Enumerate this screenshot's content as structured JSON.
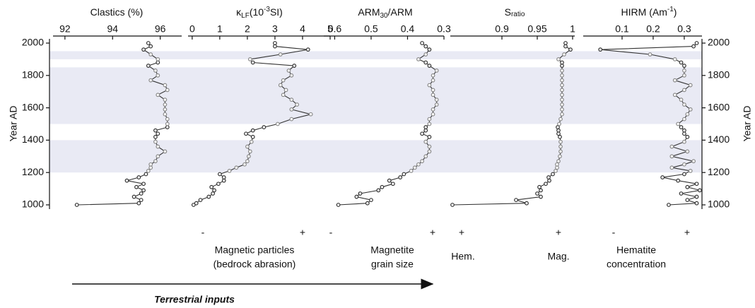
{
  "chart_data": {
    "type": "line",
    "ylabel": "Year AD",
    "ylim": [
      1000,
      2000
    ],
    "yticks": [
      1000,
      1200,
      1400,
      1600,
      1800,
      2000
    ],
    "bands": [
      [
        1200,
        1400
      ],
      [
        1500,
        1850
      ],
      [
        1900,
        1950
      ]
    ],
    "band_color": "#e9eaf4",
    "line_color": "#333333",
    "band_point_color": "#8a8a8a",
    "y": [
      1000,
      1010,
      1030,
      1050,
      1070,
      1090,
      1110,
      1130,
      1150,
      1170,
      1190,
      1210,
      1230,
      1250,
      1270,
      1300,
      1330,
      1360,
      1390,
      1420,
      1440,
      1460,
      1480,
      1500,
      1530,
      1560,
      1590,
      1620,
      1650,
      1680,
      1710,
      1740,
      1770,
      1800,
      1830,
      1860,
      1880,
      1900,
      1930,
      1960,
      1980,
      2000
    ],
    "panels": [
      {
        "title": [
          "Clastics (%)"
        ],
        "xlim": [
          91.5,
          96.9
        ],
        "xticks": [
          92,
          94,
          96
        ],
        "values": [
          92.5,
          95.1,
          95.2,
          94.9,
          95.2,
          95.3,
          95.0,
          95.3,
          94.6,
          95.1,
          95.4,
          95.5,
          95.6,
          95.6,
          95.8,
          95.9,
          96.2,
          95.9,
          95.8,
          95.8,
          95.9,
          95.8,
          96.3,
          96.3,
          96.3,
          96.2,
          96.2,
          96.2,
          96.2,
          95.9,
          96.3,
          96.2,
          95.6,
          95.9,
          95.8,
          95.5,
          95.9,
          95.9,
          95.6,
          95.3,
          95.6,
          95.5
        ]
      },
      {
        "title": [
          "κ",
          "LF",
          "(10",
          "-3",
          "SI)"
        ],
        "xlim": [
          -0.15,
          5
        ],
        "xticks": [
          0,
          1,
          2,
          3,
          4,
          5
        ],
        "values": [
          0.05,
          0.15,
          0.3,
          0.6,
          0.75,
          0.8,
          0.7,
          0.95,
          1.15,
          1.15,
          1.0,
          1.35,
          1.6,
          1.9,
          2.0,
          2.05,
          2.1,
          2.0,
          2.15,
          2.2,
          1.95,
          2.2,
          2.6,
          3.1,
          3.6,
          4.3,
          3.6,
          3.8,
          3.6,
          3.3,
          3.4,
          3.2,
          3.3,
          3.6,
          3.5,
          3.7,
          2.2,
          2.1,
          3.2,
          4.2,
          3.0,
          3.0
        ]
      },
      {
        "title": [
          "ARM",
          "30",
          "/ARM"
        ],
        "xlim": [
          0.63,
          0.3
        ],
        "xticks": [
          0.6,
          0.5,
          0.4,
          0.3
        ],
        "values": [
          0.59,
          0.51,
          0.5,
          0.54,
          0.53,
          0.48,
          0.47,
          0.44,
          0.45,
          0.42,
          0.41,
          0.39,
          0.38,
          0.37,
          0.36,
          0.35,
          0.34,
          0.34,
          0.35,
          0.34,
          0.36,
          0.35,
          0.35,
          0.34,
          0.34,
          0.33,
          0.33,
          0.32,
          0.32,
          0.33,
          0.33,
          0.34,
          0.33,
          0.33,
          0.32,
          0.34,
          0.35,
          0.37,
          0.35,
          0.34,
          0.35,
          0.36
        ]
      },
      {
        "title": [
          "S",
          "ratio"
        ],
        "xlim": [
          0.827,
          1.003
        ],
        "xticks": [
          0.9,
          0.95,
          1
        ],
        "values": [
          0.83,
          0.935,
          0.92,
          0.955,
          0.95,
          0.955,
          0.953,
          0.962,
          0.967,
          0.966,
          0.972,
          0.976,
          0.978,
          0.978,
          0.98,
          0.982,
          0.983,
          0.983,
          0.983,
          0.982,
          0.98,
          0.98,
          0.979,
          0.981,
          0.983,
          0.985,
          0.985,
          0.985,
          0.985,
          0.985,
          0.985,
          0.985,
          0.985,
          0.985,
          0.985,
          0.985,
          0.985,
          0.98,
          0.988,
          0.997,
          0.99,
          0.99
        ]
      },
      {
        "title": [
          "HIRM (Am",
          "-1",
          ")"
        ],
        "xlim": [
          -0.025,
          0.357
        ],
        "xticks": [
          0.1,
          0.2,
          0.3
        ],
        "values": [
          0.25,
          0.34,
          0.31,
          0.34,
          0.29,
          0.35,
          0.31,
          0.34,
          0.28,
          0.23,
          0.3,
          0.32,
          0.26,
          0.3,
          0.33,
          0.26,
          0.31,
          0.26,
          0.3,
          0.31,
          0.3,
          0.3,
          0.29,
          0.28,
          0.3,
          0.31,
          0.32,
          0.3,
          0.29,
          0.27,
          0.3,
          0.32,
          0.27,
          0.3,
          0.3,
          0.3,
          0.29,
          0.27,
          0.19,
          0.03,
          0.33,
          0.34
        ]
      }
    ],
    "annotations": [
      [
        "-"
      ],
      [
        "+"
      ],
      [
        "Magnetic particles",
        "(bedrock abrasion)"
      ],
      [
        "-"
      ],
      [
        "+"
      ],
      [
        "Magnetite",
        "grain size"
      ],
      [
        "+"
      ],
      [
        "+"
      ],
      [
        "Hem."
      ],
      [
        "Mag."
      ],
      [
        "-"
      ],
      [
        "+"
      ],
      [
        "Hematite",
        "concentration"
      ],
      [
        "Terrestrial inputs"
      ]
    ]
  }
}
